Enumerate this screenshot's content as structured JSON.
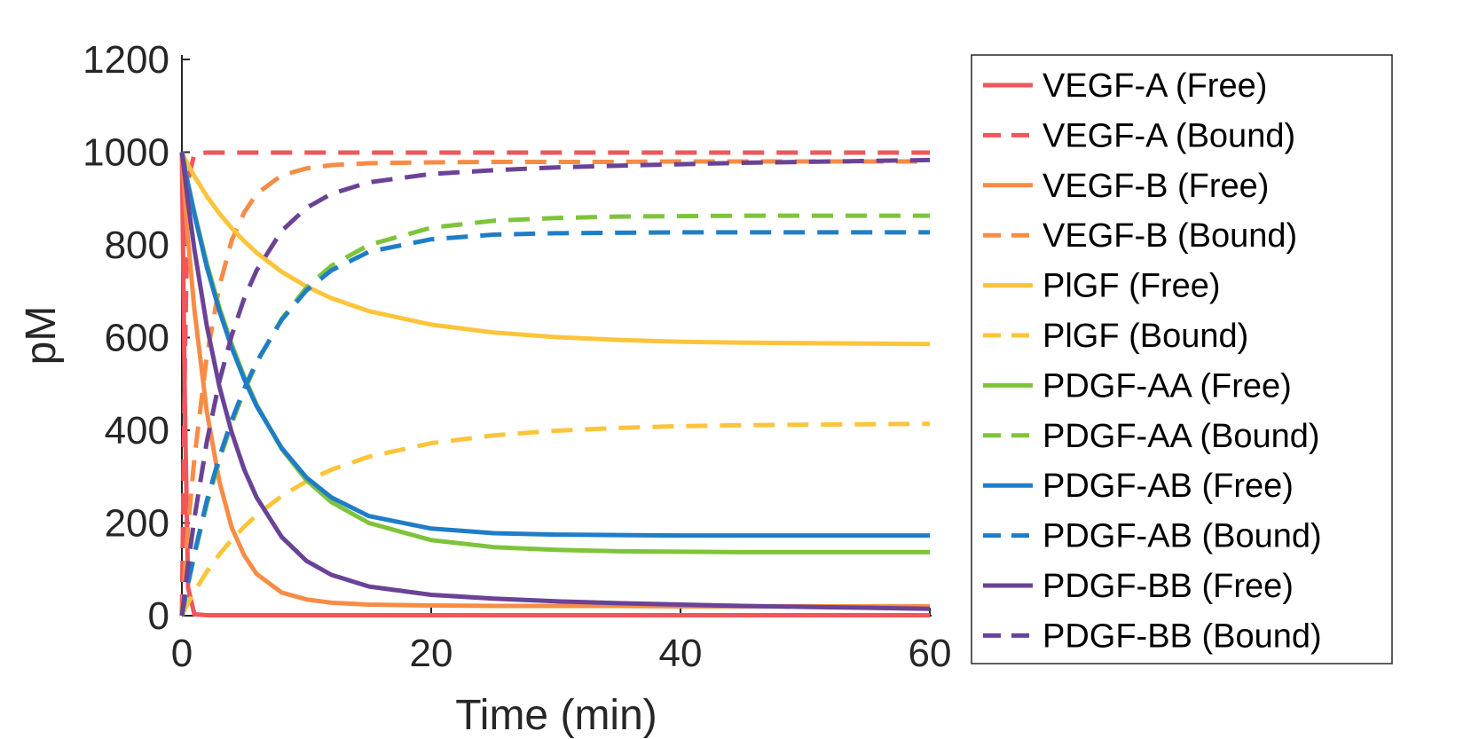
{
  "chart_data": {
    "type": "line",
    "title": "",
    "xlabel": "Time (min)",
    "ylabel": "pM",
    "xlim": [
      0,
      60
    ],
    "ylim": [
      0,
      1200
    ],
    "xticks": [
      "0",
      "20",
      "40",
      "60"
    ],
    "yticks": [
      "0",
      "200",
      "400",
      "600",
      "800",
      "1000",
      "1200"
    ],
    "grid": false,
    "legend_position": "right",
    "x": [
      0,
      0.25,
      0.5,
      1,
      2,
      3,
      4,
      5,
      6,
      8,
      10,
      12,
      15,
      20,
      25,
      30,
      35,
      40,
      45,
      50,
      55,
      60
    ],
    "series": [
      {
        "name": "VEGF-A (Free)",
        "color": "#F0565A",
        "dash": "solid",
        "values": [
          1000,
          440,
          60,
          3,
          1,
          1,
          1,
          1,
          1,
          1,
          1,
          1,
          1,
          1,
          1,
          1,
          1,
          1,
          1,
          1,
          1,
          1
        ]
      },
      {
        "name": "VEGF-A (Bound)",
        "color": "#F0565A",
        "dash": "dashed",
        "values": [
          0,
          560,
          940,
          997,
          999,
          999,
          999,
          999,
          999,
          999,
          999,
          999,
          999,
          999,
          999,
          999,
          999,
          999,
          999,
          999,
          999,
          999
        ]
      },
      {
        "name": "VEGF-B (Free)",
        "color": "#F68C46",
        "dash": "solid",
        "values": [
          1000,
          900,
          810,
          660,
          440,
          290,
          190,
          130,
          90,
          50,
          35,
          28,
          24,
          22,
          21,
          21,
          21,
          20,
          20,
          20,
          20,
          20
        ]
      },
      {
        "name": "VEGF-B (Bound)",
        "color": "#F68C46",
        "dash": "dashed",
        "values": [
          0,
          100,
          190,
          340,
          560,
          710,
          810,
          870,
          910,
          950,
          965,
          972,
          976,
          978,
          979,
          979,
          979,
          980,
          980,
          980,
          980,
          980
        ]
      },
      {
        "name": "PlGF (Free)",
        "color": "#FCC43B",
        "dash": "solid",
        "values": [
          1000,
          985,
          972,
          948,
          905,
          868,
          836,
          808,
          783,
          742,
          710,
          685,
          657,
          628,
          611,
          601,
          595,
          591,
          589,
          588,
          587,
          586
        ]
      },
      {
        "name": "PlGF (Bound)",
        "color": "#FCC43B",
        "dash": "dashed",
        "values": [
          0,
          15,
          28,
          52,
          95,
          132,
          164,
          192,
          217,
          258,
          290,
          315,
          343,
          372,
          389,
          399,
          405,
          409,
          411,
          412,
          413,
          414
        ]
      },
      {
        "name": "PDGF-AA (Free)",
        "color": "#7EC43A",
        "dash": "solid",
        "values": [
          1000,
          965,
          932,
          870,
          760,
          665,
          585,
          515,
          455,
          360,
          292,
          245,
          200,
          163,
          148,
          142,
          139,
          138,
          137,
          137,
          137,
          137
        ]
      },
      {
        "name": "PDGF-AA (Bound)",
        "color": "#7EC43A",
        "dash": "dashed",
        "values": [
          0,
          35,
          68,
          130,
          240,
          335,
          415,
          485,
          545,
          640,
          708,
          755,
          800,
          837,
          852,
          858,
          861,
          862,
          863,
          863,
          863,
          863
        ]
      },
      {
        "name": "PDGF-AB (Free)",
        "color": "#1F7DC8",
        "dash": "solid",
        "values": [
          1000,
          964,
          930,
          866,
          752,
          658,
          578,
          510,
          452,
          362,
          298,
          255,
          215,
          188,
          178,
          175,
          174,
          173,
          173,
          173,
          173,
          173
        ]
      },
      {
        "name": "PDGF-AB (Bound)",
        "color": "#1F7DC8",
        "dash": "dashed",
        "values": [
          0,
          36,
          70,
          134,
          248,
          342,
          422,
          490,
          548,
          638,
          702,
          745,
          785,
          812,
          822,
          825,
          826,
          827,
          827,
          827,
          827,
          827
        ]
      },
      {
        "name": "PDGF-BB (Free)",
        "color": "#6A4297",
        "dash": "solid",
        "values": [
          1000,
          945,
          890,
          790,
          625,
          495,
          395,
          315,
          255,
          170,
          118,
          88,
          63,
          45,
          37,
          31,
          27,
          24,
          21,
          19,
          17,
          15
        ]
      },
      {
        "name": "PDGF-BB (Bound)",
        "color": "#6A4297",
        "dash": "dashed",
        "values": [
          0,
          55,
          110,
          210,
          375,
          505,
          605,
          685,
          745,
          830,
          880,
          910,
          935,
          953,
          961,
          967,
          971,
          974,
          977,
          979,
          981,
          983
        ]
      }
    ]
  }
}
